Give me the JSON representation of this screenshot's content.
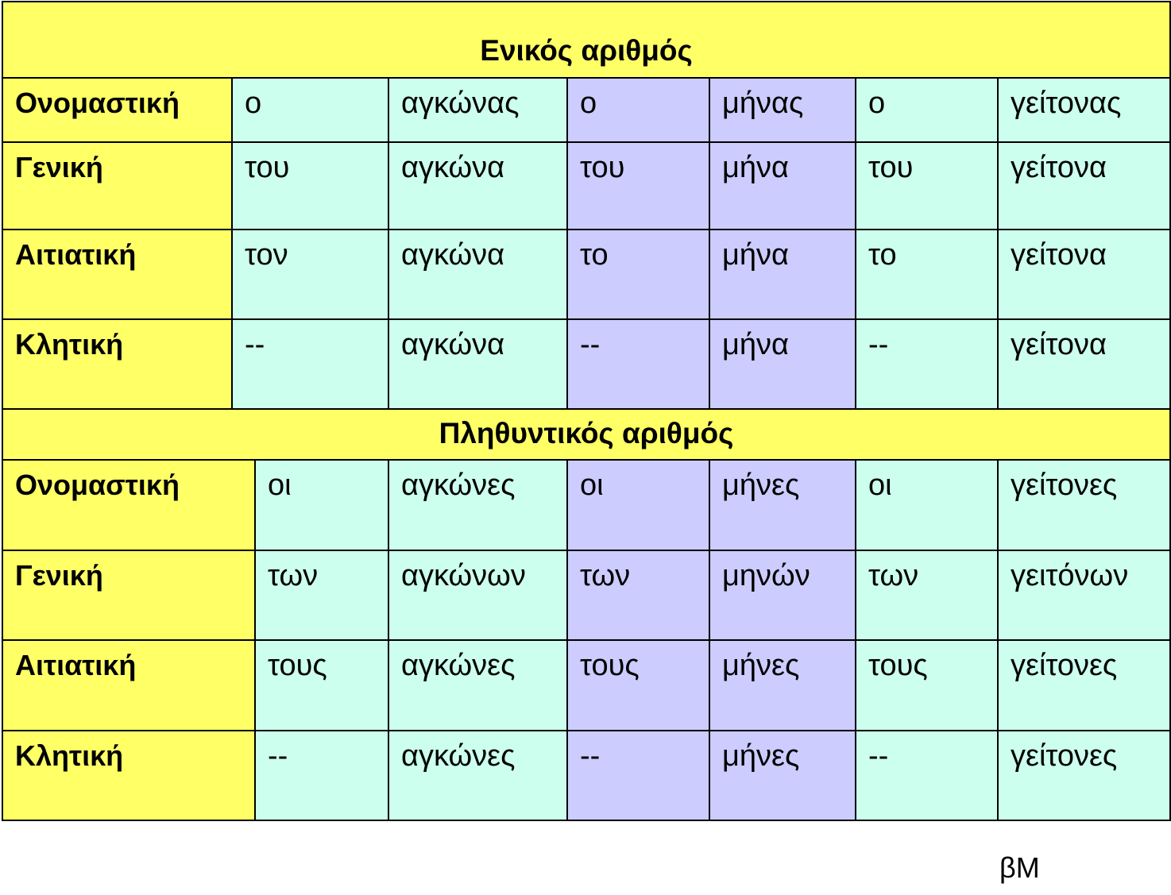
{
  "singular": {
    "title": "Ενικός αριθμός",
    "rows": [
      {
        "case": "Ονομαστική",
        "cells": [
          "ο",
          "αγκώνας",
          "ο",
          "μήνας",
          "ο",
          "γείτονας"
        ]
      },
      {
        "case": "Γενική",
        "cells": [
          "του",
          "αγκώνα",
          "του",
          "μήνα",
          "του",
          "γείτονα"
        ]
      },
      {
        "case": "Αιτιατική",
        "cells": [
          "τον",
          "αγκώνα",
          "το",
          "μήνα",
          "το",
          "γείτονα"
        ]
      },
      {
        "case": "Κλητική",
        "cells": [
          "--",
          "αγκώνα",
          "--",
          "μήνα",
          "--",
          "γείτονα"
        ]
      }
    ]
  },
  "plural": {
    "title": "Πληθυντικός αριθμός",
    "rows": [
      {
        "case": "Ονομαστική",
        "cells": [
          "οι",
          "αγκώνες",
          "οι",
          "μήνες",
          "οι",
          "γείτονες"
        ]
      },
      {
        "case": "Γενική",
        "cells": [
          "των",
          "αγκώνων",
          "των",
          "μηνών",
          "των",
          "γειτόνων"
        ]
      },
      {
        "case": "Αιτιατική",
        "cells": [
          "τους",
          "αγκώνες",
          "τους",
          "μήνες",
          "τους",
          "γείτονες"
        ]
      },
      {
        "case": "Κλητική",
        "cells": [
          "--",
          "αγκώνες",
          "--",
          "μήνες",
          "--",
          "γείτονες"
        ]
      }
    ]
  },
  "footer": {
    "signature": "βΜ"
  },
  "colors": {
    "header": "#ffff66",
    "green": "#ccffee",
    "blue": "#ccccff"
  }
}
